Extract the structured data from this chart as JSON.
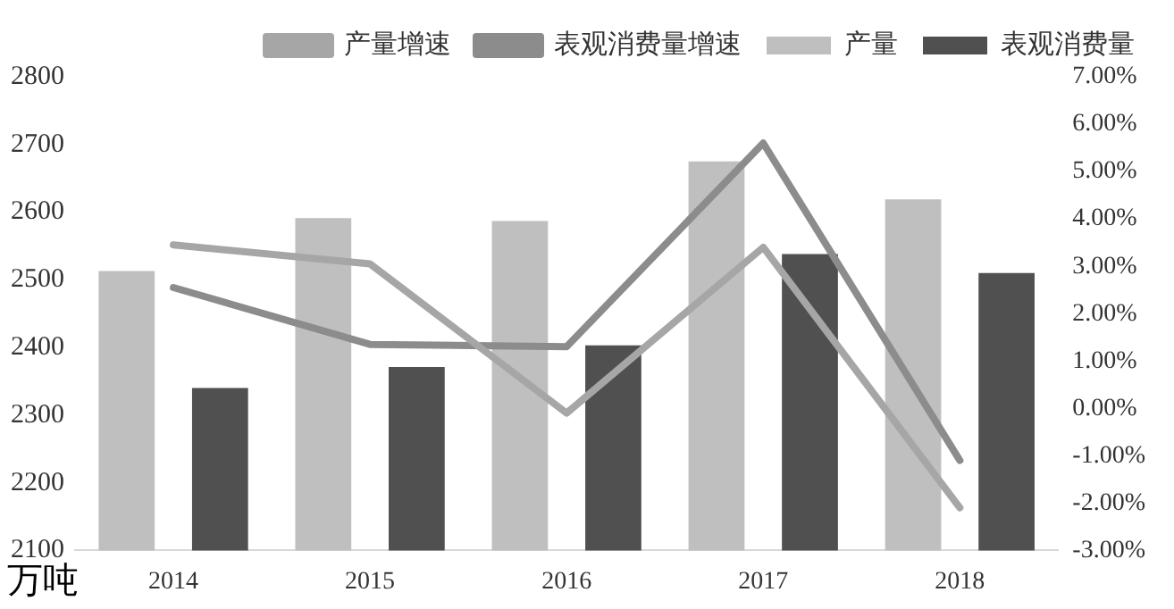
{
  "chart_data": {
    "type": "bar",
    "ylabel": "万吨",
    "categories": [
      "2014",
      "2015",
      "2016",
      "2017",
      "2018"
    ],
    "series": [
      {
        "name": "产量",
        "color": "#bfbfbf",
        "values": [
          2513,
          2591,
          2587,
          2675,
          2619
        ]
      },
      {
        "name": "表观消费量",
        "color": "#505050",
        "values": [
          2340,
          2371,
          2403,
          2538,
          2510
        ]
      },
      {
        "name": "产量增速",
        "type": "line",
        "axis": "y2",
        "color": "#a6a6a6",
        "values": [
          3.45,
          3.05,
          -0.1,
          3.4,
          -2.1
        ]
      },
      {
        "name": "表观消费量增速",
        "type": "line",
        "axis": "y2",
        "color": "#8c8c8c",
        "values": [
          2.55,
          1.35,
          1.3,
          5.6,
          -1.1
        ]
      }
    ],
    "ylim": [
      2100,
      2800
    ],
    "yticks": [
      2100,
      2200,
      2300,
      2400,
      2500,
      2600,
      2700,
      2800
    ],
    "y2lim": [
      -3,
      7
    ],
    "y2ticks": [
      {
        "value": -3,
        "label": "-3.00%"
      },
      {
        "value": -2,
        "label": "-2.00%"
      },
      {
        "value": -1,
        "label": "-1.00%"
      },
      {
        "value": 0,
        "label": "0.00%"
      },
      {
        "value": 1,
        "label": "1.00%"
      },
      {
        "value": 2,
        "label": "2.00%"
      },
      {
        "value": 3,
        "label": "3.00%"
      },
      {
        "value": 4,
        "label": "4.00%"
      },
      {
        "value": 5,
        "label": "5.00%"
      },
      {
        "value": 6,
        "label": "6.00%"
      },
      {
        "value": 7,
        "label": "7.00%"
      }
    ],
    "grid": false,
    "legend": "top",
    "marker": "none"
  }
}
